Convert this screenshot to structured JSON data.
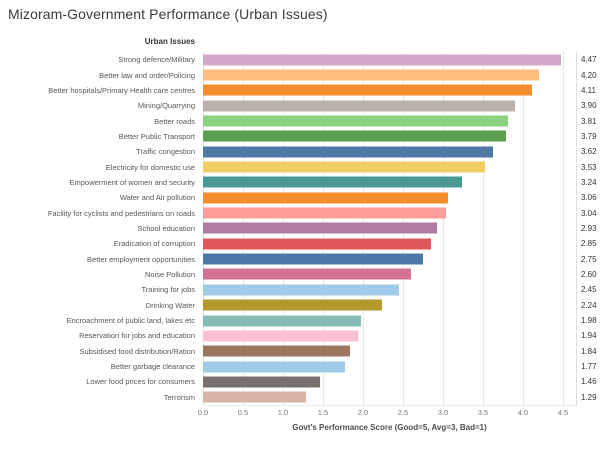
{
  "title": "Mizoram-Government Performance (Urban Issues)",
  "chart_data": {
    "type": "bar",
    "orientation": "horizontal",
    "column_header": "Urban Issues",
    "xlabel": "Govt's Performance Score (Good=5, Avg=3, Bad=1)",
    "xlim": [
      0,
      4.65
    ],
    "grid": true,
    "legend": false,
    "x_ticks": [
      "0.0",
      "0.5",
      "1.0",
      "1.5",
      "2.0",
      "2.5",
      "3.0",
      "3.5",
      "4.0",
      "4.5"
    ],
    "categories": [
      "Strong defence/Military",
      "Better law and order/Policing",
      "Better  hospitals/Primary Health care centres",
      "Mining/Quarrying",
      "Better roads",
      "Better Public Transport",
      "Traffic congestion",
      "Electricity for domestic use",
      "Empowerment of women and security",
      "Water and Air pollution",
      "Facility for cyclists and pedestrians on roads",
      "School education",
      "Eradication of corruption",
      "Better employment opportunities",
      "Noise Pollution",
      "Training for jobs",
      "Drinking Water",
      "Encroachment of public land, lakes etc",
      "Reservation for jobs and education",
      "Subsidised food distribution/Ration",
      "Better garbage clearance",
      "Lower food prices for consumers",
      "Terrorism"
    ],
    "values": [
      4.47,
      4.2,
      4.11,
      3.9,
      3.81,
      3.79,
      3.62,
      3.53,
      3.24,
      3.06,
      3.04,
      2.93,
      2.85,
      2.75,
      2.6,
      2.45,
      2.24,
      1.98,
      1.94,
      1.84,
      1.77,
      1.46,
      1.29
    ],
    "value_labels": [
      "4.47",
      "4.20",
      "4.11",
      "3.90",
      "3.81",
      "3.79",
      "3.62",
      "3.53",
      "3.24",
      "3.06",
      "3.04",
      "2.93",
      "2.85",
      "2.75",
      "2.60",
      "2.45",
      "2.24",
      "1.98",
      "1.94",
      "1.84",
      "1.77",
      "1.46",
      "1.29"
    ],
    "bar_colors": [
      "#D4A6C8",
      "#FFBE7D",
      "#F28E2B",
      "#BAB0AC",
      "#8CD17D",
      "#59A14F",
      "#4E79A7",
      "#F1CE63",
      "#499894",
      "#F28E2B",
      "#FF9D9A",
      "#B07AA1",
      "#E15759",
      "#4E79A7",
      "#D37295",
      "#A0CBE8",
      "#B6992D",
      "#86BCB6",
      "#FABFD2",
      "#9D7660",
      "#A0CBE8",
      "#79706E",
      "#D7B5A6"
    ]
  },
  "style_colors": {
    "gridline": "#e7e7e7",
    "text_primary": "#333333",
    "text_secondary": "#575757"
  }
}
